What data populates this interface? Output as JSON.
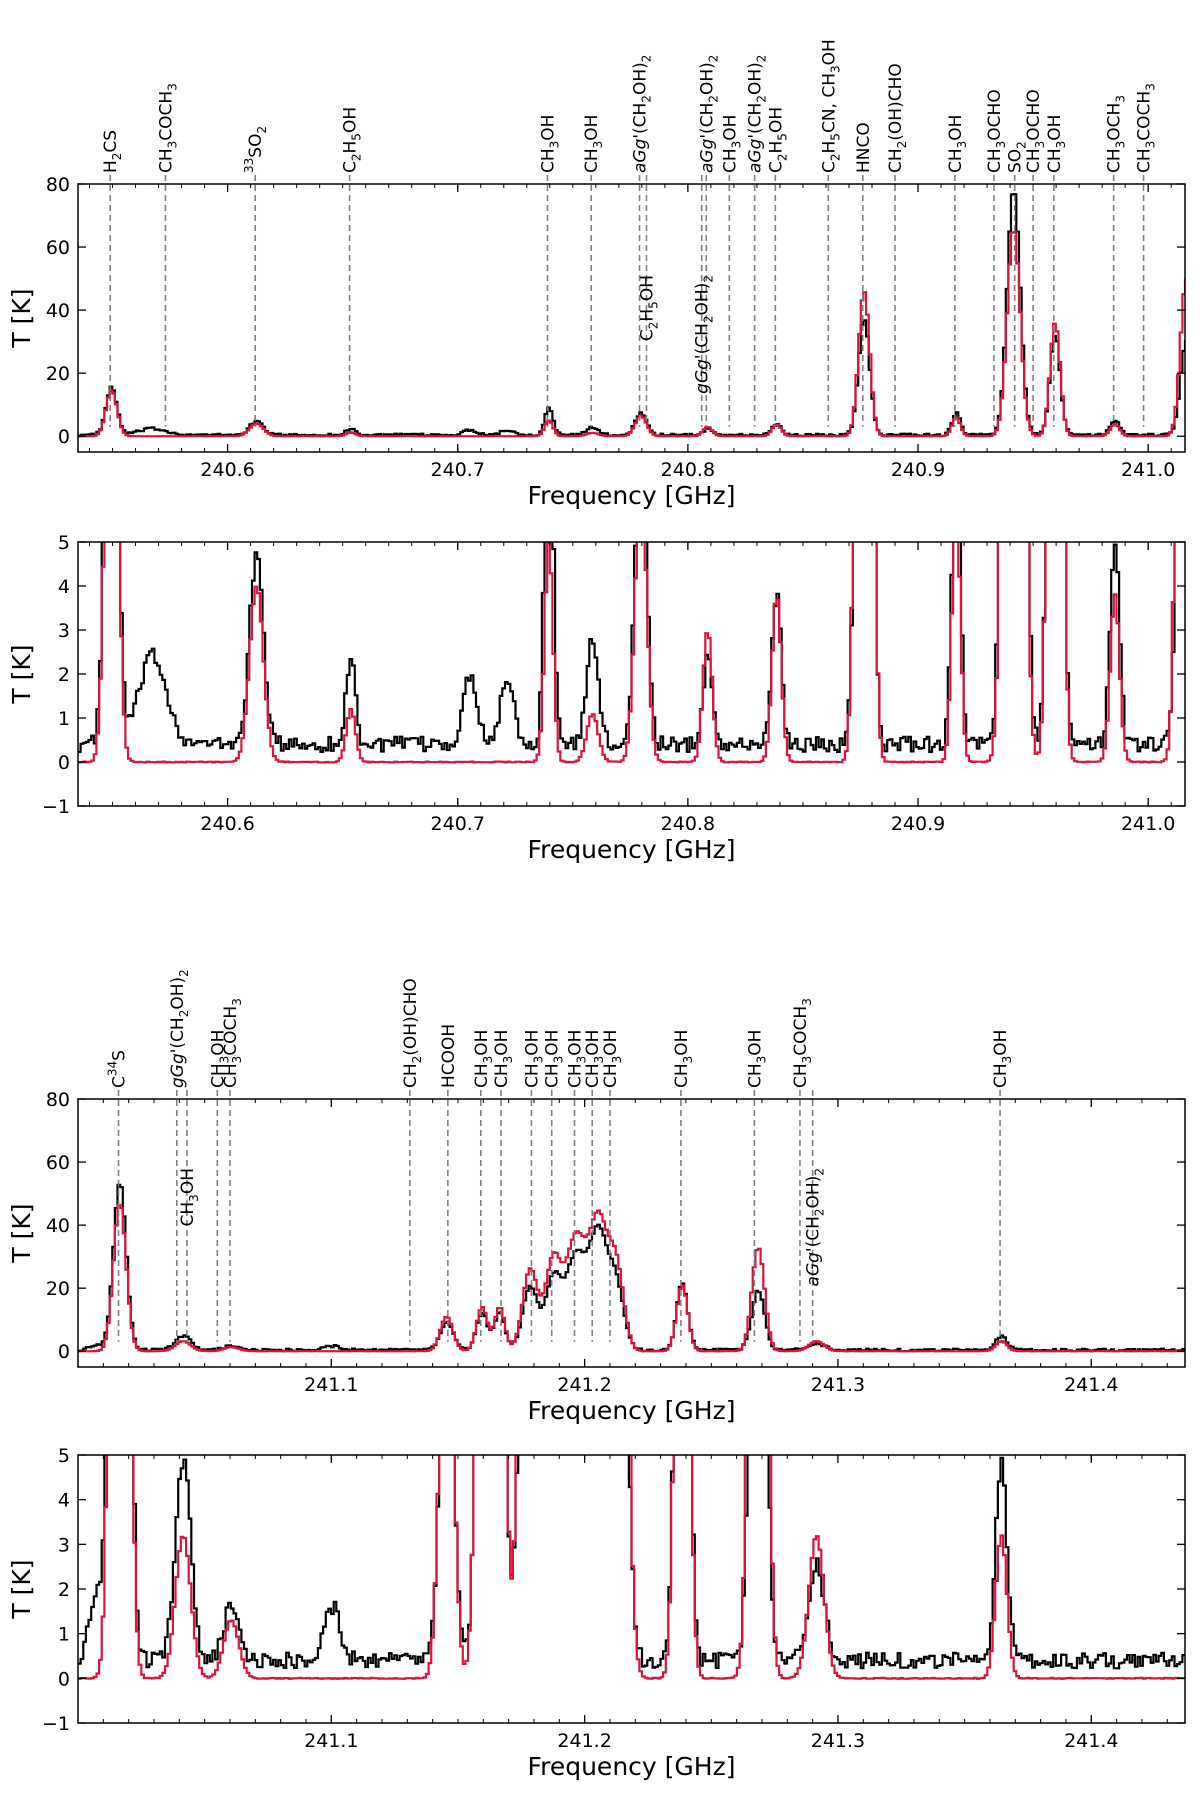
{
  "figure": {
    "description": "Observed (black) and model (red) spectra, four panels"
  },
  "colors": {
    "observed": "#000000",
    "model": "#dc143c",
    "marker": "#808080"
  },
  "chart_data": [
    {
      "id": "p1",
      "type": "line",
      "xlabel": "Frequency [GHz]",
      "ylabel": "T [K]",
      "xlim": [
        240.535,
        241.016
      ],
      "ylim": [
        -5,
        80
      ],
      "xticks": [
        240.6,
        240.7,
        240.8,
        240.9,
        241.0
      ],
      "xtick_labels": [
        "240.6",
        "240.7",
        "240.8",
        "240.9",
        "241.0"
      ],
      "yticks": [
        0,
        20,
        40,
        60,
        80
      ],
      "ytick_labels": [
        "0",
        "20",
        "40",
        "60",
        "80"
      ],
      "series": [
        {
          "name": "observed",
          "color": "#000000",
          "baseline": 0.4,
          "peaks": [
            [
              240.549,
              15,
              0.0024
            ],
            [
              240.612,
              4.3,
              0.003
            ],
            [
              240.653,
              2,
              0.002
            ],
            [
              240.739,
              9,
              0.0018
            ],
            [
              240.758,
              2.4,
              0.0025
            ],
            [
              240.779,
              7,
              0.0025
            ],
            [
              240.808,
              2,
              0.002
            ],
            [
              240.838,
              3.5,
              0.002
            ],
            [
              240.876,
              37,
              0.0024
            ],
            [
              240.916,
              7,
              0.0018
            ],
            [
              240.941,
              78,
              0.0028
            ],
            [
              240.959,
              32,
              0.0022
            ],
            [
              240.985,
              4.6,
              0.002
            ],
            [
              241.016,
              30,
              0.0025
            ],
            [
              240.567,
              2,
              0.006
            ],
            [
              240.705,
              1.6,
              0.003
            ],
            [
              240.721,
              1.5,
              0.003
            ]
          ]
        },
        {
          "name": "model",
          "color": "#dc143c",
          "baseline": 0.0,
          "peaks": [
            [
              240.549,
              14.5,
              0.0024
            ],
            [
              240.612,
              4,
              0.003
            ],
            [
              240.653,
              1.2,
              0.002
            ],
            [
              240.739,
              5,
              0.0018
            ],
            [
              240.758,
              1.1,
              0.0025
            ],
            [
              240.779,
              6.5,
              0.0025
            ],
            [
              240.808,
              3,
              0.002
            ],
            [
              240.838,
              3.8,
              0.002
            ],
            [
              240.876,
              46,
              0.0024
            ],
            [
              240.916,
              6,
              0.0018
            ],
            [
              240.941,
              66,
              0.0028
            ],
            [
              240.959,
              36,
              0.0022
            ],
            [
              240.985,
              3.8,
              0.002
            ],
            [
              241.016,
              50,
              0.0025
            ]
          ]
        }
      ],
      "markers": [
        {
          "x": 240.549,
          "label": "H$_2$CS",
          "row": 0
        },
        {
          "x": 240.573,
          "label": "CH$_3$COCH$_3$",
          "row": 0
        },
        {
          "x": 240.612,
          "label": "$^{33}$SO$_2$",
          "row": 0
        },
        {
          "x": 240.653,
          "label": "C$_2$H$_5$OH",
          "row": 0
        },
        {
          "x": 240.739,
          "label": "CH$_3$OH",
          "row": 0
        },
        {
          "x": 240.758,
          "label": "CH$_3$OH",
          "row": 0
        },
        {
          "x": 240.779,
          "label": "aGg'(CH$_2$OH)$_2$",
          "row": 0
        },
        {
          "x": 240.782,
          "label": "C$_2$H$_5$OH",
          "row": 1
        },
        {
          "x": 240.808,
          "label": "aGg'(CH$_2$OH)$_2$",
          "row": 0
        },
        {
          "x": 240.806,
          "label": "gGg'(CH$_2$OH)$_2$",
          "row": 1
        },
        {
          "x": 240.818,
          "label": "CH$_3$OH",
          "row": 0
        },
        {
          "x": 240.829,
          "label": "aGg'(CH$_2$OH)$_2$",
          "row": 0
        },
        {
          "x": 240.838,
          "label": "C$_2$H$_5$OH",
          "row": 0
        },
        {
          "x": 240.861,
          "label": "C$_2$H$_5$CN, CH$_3$OH",
          "row": 0
        },
        {
          "x": 240.876,
          "label": "HNCO",
          "row": 0
        },
        {
          "x": 240.89,
          "label": "CH$_2$(OH)CHO",
          "row": 0
        },
        {
          "x": 240.916,
          "label": "CH$_3$OH",
          "row": 0
        },
        {
          "x": 240.933,
          "label": "CH$_3$OCHO",
          "row": 0
        },
        {
          "x": 240.942,
          "label": "SO$_2$",
          "row": 0
        },
        {
          "x": 240.95,
          "label": "CH$_3$OCHO",
          "row": 0
        },
        {
          "x": 240.959,
          "label": "CH$_3$OH",
          "row": 0
        },
        {
          "x": 240.985,
          "label": "CH$_3$OCH$_3$",
          "row": 0
        },
        {
          "x": 240.998,
          "label": "CH$_3$COCH$_3$",
          "row": 0
        }
      ]
    },
    {
      "id": "p2",
      "type": "line",
      "xlabel": "Frequency [GHz]",
      "ylabel": "T [K]",
      "xlim": [
        240.535,
        241.016
      ],
      "ylim": [
        -1,
        5
      ],
      "xticks": [
        240.6,
        240.7,
        240.8,
        240.9,
        241.0
      ],
      "xtick_labels": [
        "240.6",
        "240.7",
        "240.8",
        "240.9",
        "241.0"
      ],
      "yticks": [
        -1,
        0,
        1,
        2,
        3,
        4,
        5
      ],
      "ytick_labels": [
        "−1",
        "0",
        "1",
        "2",
        "3",
        "4",
        "5"
      ],
      "series_ref": "p1"
    },
    {
      "id": "p3",
      "type": "line",
      "xlabel": "Frequency [GHz]",
      "ylabel": "T [K]",
      "xlim": [
        241.0,
        241.437
      ],
      "ylim": [
        -5,
        80
      ],
      "xticks": [
        241.1,
        241.2,
        241.3,
        241.4
      ],
      "xtick_labels": [
        "241.1",
        "241.2",
        "241.3",
        "241.4"
      ],
      "yticks": [
        0,
        20,
        40,
        60,
        80
      ],
      "ytick_labels": [
        "0",
        "20",
        "40",
        "60",
        "80"
      ],
      "series": [
        {
          "name": "observed",
          "color": "#000000",
          "baseline": 0.4,
          "peaks": [
            [
              241.016,
              53,
              0.0025
            ],
            [
              241.041,
              4.5,
              0.003
            ],
            [
              241.06,
              1.2,
              0.003
            ],
            [
              241.145,
              9,
              0.0025
            ],
            [
              241.159,
              12,
              0.0022
            ],
            [
              241.166,
              12,
              0.002
            ],
            [
              241.178,
              20,
              0.003
            ],
            [
              241.187,
              22,
              0.003
            ],
            [
              241.196,
              30,
              0.004
            ],
            [
              241.205,
              36,
              0.0035
            ],
            [
              241.212,
              20,
              0.003
            ],
            [
              241.238,
              21,
              0.0022
            ],
            [
              241.268,
              19,
              0.0025
            ],
            [
              241.291,
              2.2,
              0.003
            ],
            [
              241.364,
              4.5,
              0.0022
            ],
            [
              241.007,
              1.5,
              0.003
            ],
            [
              241.1,
              1.2,
              0.003
            ]
          ]
        },
        {
          "name": "model",
          "color": "#dc143c",
          "baseline": 0.0,
          "peaks": [
            [
              241.016,
              47,
              0.0025
            ],
            [
              241.041,
              3.2,
              0.003
            ],
            [
              241.06,
              1.3,
              0.003
            ],
            [
              241.145,
              11,
              0.0025
            ],
            [
              241.159,
              14,
              0.0022
            ],
            [
              241.166,
              14,
              0.002
            ],
            [
              241.178,
              26,
              0.003
            ],
            [
              241.187,
              28,
              0.003
            ],
            [
              241.196,
              36,
              0.004
            ],
            [
              241.205,
              40,
              0.0035
            ],
            [
              241.212,
              26,
              0.003
            ],
            [
              241.238,
              21,
              0.0022
            ],
            [
              241.268,
              33,
              0.0025
            ],
            [
              241.291,
              3.2,
              0.003
            ],
            [
              241.364,
              3.2,
              0.0022
            ]
          ]
        }
      ],
      "markers": [
        {
          "x": 241.016,
          "label": "C$^{34}$S",
          "row": 0
        },
        {
          "x": 241.039,
          "label": "gGg'(CH$_2$OH)$_2$",
          "row": 0
        },
        {
          "x": 241.043,
          "label": "CH$_3$OH",
          "row": 1
        },
        {
          "x": 241.055,
          "label": "CH$_3$OH",
          "row": 0
        },
        {
          "x": 241.06,
          "label": "CH$_3$COCH$_3$",
          "row": 0
        },
        {
          "x": 241.131,
          "label": "CH$_2$(OH)CHO",
          "row": 0
        },
        {
          "x": 241.146,
          "label": "HCOOH",
          "row": 0
        },
        {
          "x": 241.159,
          "label": "CH$_3$OH",
          "row": 0
        },
        {
          "x": 241.167,
          "label": "CH$_3$OH",
          "row": 0
        },
        {
          "x": 241.179,
          "label": "CH$_3$OH",
          "row": 0
        },
        {
          "x": 241.187,
          "label": "CH$_3$OH",
          "row": 0
        },
        {
          "x": 241.196,
          "label": "CH$_3$OH",
          "row": 0
        },
        {
          "x": 241.203,
          "label": "CH$_3$OH",
          "row": 0
        },
        {
          "x": 241.21,
          "label": "CH$_3$OH",
          "row": 0
        },
        {
          "x": 241.238,
          "label": "CH$_3$OH",
          "row": 0
        },
        {
          "x": 241.267,
          "label": "CH$_3$OH",
          "row": 0
        },
        {
          "x": 241.285,
          "label": "CH$_3$COCH$_3$",
          "row": 0
        },
        {
          "x": 241.29,
          "label": "aGg'(CH$_2$OH)$_2$",
          "row": 1
        },
        {
          "x": 241.364,
          "label": "CH$_3$OH",
          "row": 0
        }
      ]
    },
    {
      "id": "p4",
      "type": "line",
      "xlabel": "Frequency [GHz]",
      "ylabel": "T [K]",
      "xlim": [
        241.0,
        241.437
      ],
      "ylim": [
        -1,
        5
      ],
      "xticks": [
        241.1,
        241.2,
        241.3,
        241.4
      ],
      "xtick_labels": [
        "241.1",
        "241.2",
        "241.3",
        "241.4"
      ],
      "yticks": [
        -1,
        0,
        1,
        2,
        3,
        4,
        5
      ],
      "ytick_labels": [
        "−1",
        "0",
        "1",
        "2",
        "3",
        "4",
        "5"
      ],
      "series_ref": "p3"
    }
  ]
}
